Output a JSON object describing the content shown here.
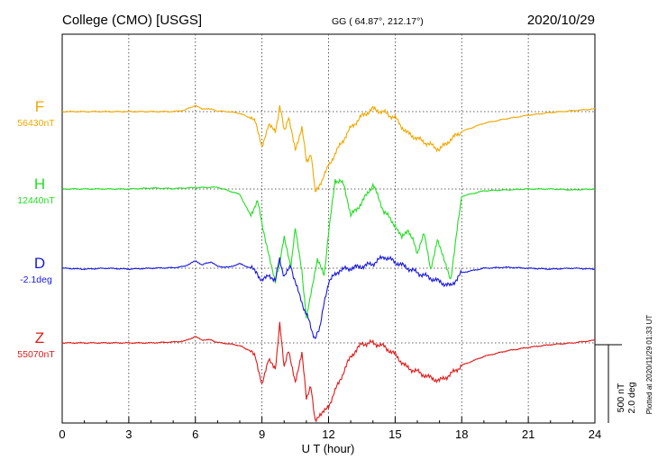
{
  "header": {
    "station": "College (CMO)  [USGS]",
    "coords": "GG ( 64.87°, 212.17°)",
    "date": "2020/10/29"
  },
  "side_note": "Plotted at 2020/11/29 01:33 UT",
  "chart_data": {
    "type": "line",
    "xlabel": "U T (hour)",
    "xlim": [
      0,
      24
    ],
    "xticks": [
      0,
      3,
      6,
      9,
      12,
      15,
      18,
      21,
      24
    ],
    "grid": true,
    "scale_bar": {
      "label_1": "500 nT",
      "label_2": "2.0 deg"
    },
    "series": [
      {
        "name": "F",
        "baseline_label": "56430nT",
        "color": "#f0a800",
        "x": [
          0,
          1,
          2,
          3,
          4,
          5,
          5.5,
          6,
          6.3,
          6.6,
          7,
          7.5,
          8,
          8.4,
          8.7,
          9,
          9.3,
          9.6,
          9.8,
          10,
          10.2,
          10.5,
          10.8,
          11,
          11.2,
          11.4,
          11.7,
          12,
          12.5,
          13,
          13.5,
          14,
          14.5,
          15,
          15.5,
          16,
          16.5,
          17,
          17.5,
          18,
          19,
          20,
          21,
          22,
          23,
          24
        ],
        "y": [
          0,
          0,
          0,
          0,
          0,
          0,
          15,
          70,
          25,
          35,
          5,
          0,
          -20,
          -60,
          -120,
          -380,
          -150,
          -230,
          60,
          -200,
          -80,
          -420,
          -170,
          -550,
          -480,
          -870,
          -780,
          -600,
          -380,
          -180,
          -50,
          30,
          -10,
          -70,
          -230,
          -300,
          -360,
          -420,
          -310,
          -220,
          -130,
          -80,
          -40,
          -10,
          10,
          30
        ]
      },
      {
        "name": "H",
        "baseline_label": "12440nT",
        "color": "#22dd22",
        "x": [
          0,
          1,
          2,
          3,
          4,
          5,
          6,
          7,
          7.5,
          8,
          8.5,
          8.8,
          9,
          9.3,
          9.6,
          9.8,
          10,
          10.3,
          10.5,
          10.8,
          11,
          11.2,
          11.5,
          11.8,
          12,
          12.3,
          12.7,
          13,
          13.5,
          14,
          14.5,
          15,
          15.3,
          15.6,
          16,
          16.3,
          16.6,
          16.9,
          17.2,
          17.5,
          18,
          19,
          20,
          21,
          22,
          23,
          24
        ],
        "y": [
          0,
          0,
          0,
          0,
          10,
          5,
          15,
          20,
          -20,
          -60,
          -300,
          -110,
          -400,
          -700,
          -1050,
          -800,
          -550,
          -850,
          -450,
          -900,
          -1450,
          -1150,
          -800,
          -950,
          -500,
          100,
          60,
          -300,
          -150,
          50,
          -250,
          -400,
          -550,
          -450,
          -700,
          -500,
          -900,
          -550,
          -800,
          -1000,
          -80,
          -20,
          -10,
          0,
          0,
          -10,
          0
        ]
      },
      {
        "name": "D",
        "baseline_label": "-2.1deg",
        "color": "#1818e0",
        "x": [
          0,
          1,
          2,
          3,
          4,
          5,
          5.5,
          6,
          6.3,
          6.7,
          7,
          7.5,
          8,
          8.5,
          8.8,
          9,
          9.3,
          9.6,
          9.8,
          10,
          10.3,
          10.5,
          10.8,
          11,
          11.2,
          11.4,
          11.6,
          12,
          12.5,
          13,
          13.5,
          14,
          14.5,
          15,
          15.5,
          16,
          16.5,
          17,
          17.5,
          18,
          19,
          20,
          21,
          22,
          23,
          24
        ],
        "y": [
          0,
          -10,
          0,
          -10,
          0,
          5,
          20,
          80,
          40,
          70,
          20,
          10,
          50,
          0,
          -60,
          -150,
          -80,
          -120,
          100,
          -100,
          20,
          -150,
          -400,
          -500,
          -650,
          -800,
          -650,
          -150,
          -20,
          0,
          20,
          50,
          130,
          70,
          10,
          -50,
          -100,
          -150,
          -200,
          -50,
          0,
          10,
          0,
          -10,
          0,
          -10
        ]
      },
      {
        "name": "Z",
        "baseline_label": "55070nT",
        "color": "#e01818",
        "x": [
          0,
          1,
          2,
          3,
          4,
          5,
          5.5,
          6,
          6.3,
          6.6,
          7,
          7.5,
          8,
          8.4,
          8.7,
          9,
          9.3,
          9.6,
          9.8,
          10,
          10.2,
          10.5,
          10.8,
          11,
          11.2,
          11.4,
          11.7,
          12,
          12.5,
          13,
          13.5,
          14,
          14.5,
          15,
          15.5,
          16,
          16.5,
          17,
          17.5,
          18,
          19,
          20,
          21,
          22,
          23,
          24
        ],
        "y": [
          0,
          0,
          0,
          0,
          0,
          10,
          20,
          70,
          30,
          40,
          5,
          -10,
          -30,
          -80,
          -150,
          -450,
          -200,
          -280,
          200,
          -250,
          -100,
          -420,
          -120,
          -600,
          -500,
          -850,
          -800,
          -700,
          -420,
          -150,
          -10,
          0,
          -40,
          -130,
          -270,
          -320,
          -380,
          -420,
          -350,
          -250,
          -150,
          -90,
          -50,
          -20,
          0,
          30
        ]
      }
    ]
  }
}
